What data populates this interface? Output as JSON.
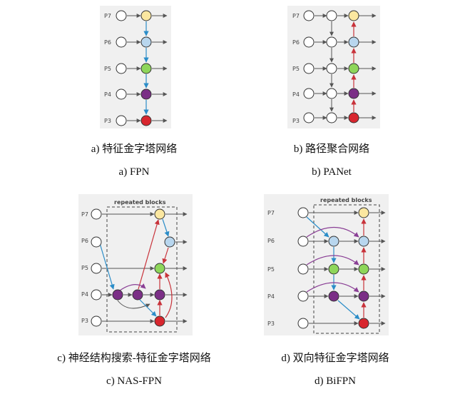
{
  "panels": [
    {
      "caption_cn": "a)  特征金字塔网络",
      "caption_en": "a) FPN"
    },
    {
      "caption_cn": "b)  路径聚合网络",
      "caption_en": "b) PANet"
    },
    {
      "caption_cn": "c)  神经结构搜索-特征金字塔网络",
      "caption_en": "c) NAS-FPN"
    },
    {
      "caption_cn": "d)  双向特征金字塔网络",
      "caption_en": "d) BiFPN"
    }
  ],
  "level_labels": [
    "P7",
    "P6",
    "P5",
    "P4",
    "P3"
  ],
  "repeated_blocks_label": "repeated blocks",
  "colors": {
    "p7": "#fbe7a0",
    "p6": "#b8d6ee",
    "p5": "#8ed65a",
    "p4": "#7b2f86",
    "p3": "#d8262e",
    "blue_arrow": "#2b8dc8",
    "red_arrow": "#c8323a",
    "purple_arrow": "#8a3f95",
    "gray_arrow": "#555555"
  }
}
